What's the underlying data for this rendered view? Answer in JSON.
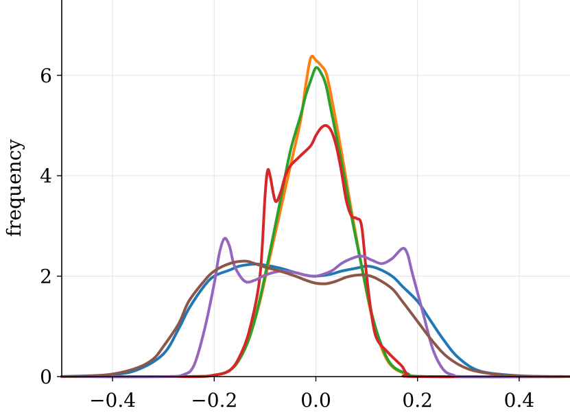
{
  "chart_data": {
    "type": "line",
    "title": "",
    "xlabel": "",
    "ylabel": "frequency",
    "xlim": [
      -0.5,
      0.5
    ],
    "ylim": [
      0,
      7.5
    ],
    "xticks": [
      -0.4,
      -0.2,
      0.0,
      0.2,
      0.4
    ],
    "xtick_labels": [
      "−0.4",
      "−0.2",
      "0.0",
      "0.2",
      "0.4"
    ],
    "yticks": [
      0,
      2,
      4,
      6
    ],
    "ytick_labels": [
      "0",
      "2",
      "4",
      "6"
    ],
    "grid": true,
    "legend": "none",
    "series": [
      {
        "color": "#1f77b4",
        "points": [
          [
            -0.5,
            0.0
          ],
          [
            -0.4,
            0.04
          ],
          [
            -0.35,
            0.14
          ],
          [
            -0.3,
            0.45
          ],
          [
            -0.27,
            0.95
          ],
          [
            -0.25,
            1.35
          ],
          [
            -0.22,
            1.8
          ],
          [
            -0.2,
            2.0
          ],
          [
            -0.17,
            2.12
          ],
          [
            -0.15,
            2.2
          ],
          [
            -0.12,
            2.24
          ],
          [
            -0.1,
            2.22
          ],
          [
            -0.07,
            2.16
          ],
          [
            -0.05,
            2.1
          ],
          [
            -0.02,
            2.02
          ],
          [
            0.0,
            2.0
          ],
          [
            0.03,
            2.04
          ],
          [
            0.05,
            2.1
          ],
          [
            0.08,
            2.16
          ],
          [
            0.1,
            2.2
          ],
          [
            0.12,
            2.16
          ],
          [
            0.15,
            2.0
          ],
          [
            0.17,
            1.8
          ],
          [
            0.2,
            1.5
          ],
          [
            0.22,
            1.2
          ],
          [
            0.25,
            0.75
          ],
          [
            0.28,
            0.38
          ],
          [
            0.32,
            0.12
          ],
          [
            0.38,
            0.03
          ],
          [
            0.45,
            0.0
          ],
          [
            0.5,
            0.0
          ]
        ]
      },
      {
        "color": "#ff7f0e",
        "points": [
          [
            -0.5,
            0.0
          ],
          [
            -0.25,
            0.0
          ],
          [
            -0.2,
            0.03
          ],
          [
            -0.17,
            0.12
          ],
          [
            -0.15,
            0.35
          ],
          [
            -0.13,
            0.8
          ],
          [
            -0.11,
            1.5
          ],
          [
            -0.09,
            2.4
          ],
          [
            -0.07,
            3.3
          ],
          [
            -0.05,
            4.2
          ],
          [
            -0.03,
            5.1
          ],
          [
            -0.02,
            5.8
          ],
          [
            -0.01,
            6.35
          ],
          [
            0.0,
            6.3
          ],
          [
            0.01,
            6.2
          ],
          [
            0.02,
            6.05
          ],
          [
            0.03,
            5.6
          ],
          [
            0.05,
            4.5
          ],
          [
            0.07,
            3.3
          ],
          [
            0.09,
            2.2
          ],
          [
            0.11,
            1.2
          ],
          [
            0.13,
            0.55
          ],
          [
            0.15,
            0.2
          ],
          [
            0.18,
            0.05
          ],
          [
            0.22,
            0.0
          ],
          [
            0.5,
            0.0
          ]
        ]
      },
      {
        "color": "#2ca02c",
        "points": [
          [
            -0.5,
            0.0
          ],
          [
            -0.25,
            0.0
          ],
          [
            -0.2,
            0.03
          ],
          [
            -0.17,
            0.12
          ],
          [
            -0.15,
            0.35
          ],
          [
            -0.13,
            0.8
          ],
          [
            -0.11,
            1.55
          ],
          [
            -0.09,
            2.5
          ],
          [
            -0.07,
            3.5
          ],
          [
            -0.05,
            4.5
          ],
          [
            -0.03,
            5.2
          ],
          [
            -0.02,
            5.6
          ],
          [
            -0.01,
            5.9
          ],
          [
            0.0,
            6.15
          ],
          [
            0.01,
            6.05
          ],
          [
            0.02,
            5.8
          ],
          [
            0.03,
            5.3
          ],
          [
            0.05,
            4.3
          ],
          [
            0.07,
            3.2
          ],
          [
            0.09,
            2.2
          ],
          [
            0.11,
            1.25
          ],
          [
            0.13,
            0.6
          ],
          [
            0.15,
            0.22
          ],
          [
            0.18,
            0.06
          ],
          [
            0.22,
            0.0
          ],
          [
            0.5,
            0.0
          ]
        ]
      },
      {
        "color": "#d62728",
        "points": [
          [
            -0.5,
            0.0
          ],
          [
            -0.25,
            0.0
          ],
          [
            -0.2,
            0.03
          ],
          [
            -0.17,
            0.12
          ],
          [
            -0.15,
            0.4
          ],
          [
            -0.13,
            0.95
          ],
          [
            -0.11,
            2.0
          ],
          [
            -0.1,
            3.6
          ],
          [
            -0.095,
            4.1
          ],
          [
            -0.09,
            4.0
          ],
          [
            -0.08,
            3.5
          ],
          [
            -0.07,
            3.65
          ],
          [
            -0.06,
            4.0
          ],
          [
            -0.05,
            4.2
          ],
          [
            -0.03,
            4.4
          ],
          [
            -0.01,
            4.6
          ],
          [
            0.0,
            4.8
          ],
          [
            0.01,
            4.95
          ],
          [
            0.02,
            5.0
          ],
          [
            0.03,
            4.9
          ],
          [
            0.04,
            4.6
          ],
          [
            0.05,
            4.1
          ],
          [
            0.06,
            3.5
          ],
          [
            0.07,
            3.2
          ],
          [
            0.08,
            3.15
          ],
          [
            0.09,
            3.0
          ],
          [
            0.1,
            2.0
          ],
          [
            0.11,
            1.2
          ],
          [
            0.12,
            0.75
          ],
          [
            0.14,
            0.5
          ],
          [
            0.16,
            0.3
          ],
          [
            0.17,
            0.2
          ],
          [
            0.18,
            0.05
          ],
          [
            0.2,
            0.0
          ],
          [
            0.5,
            0.0
          ]
        ]
      },
      {
        "color": "#9467bd",
        "points": [
          [
            -0.5,
            0.0
          ],
          [
            -0.3,
            0.0
          ],
          [
            -0.26,
            0.04
          ],
          [
            -0.24,
            0.22
          ],
          [
            -0.22,
            0.9
          ],
          [
            -0.2,
            1.85
          ],
          [
            -0.19,
            2.45
          ],
          [
            -0.18,
            2.75
          ],
          [
            -0.17,
            2.6
          ],
          [
            -0.16,
            2.2
          ],
          [
            -0.14,
            1.9
          ],
          [
            -0.12,
            1.92
          ],
          [
            -0.1,
            2.02
          ],
          [
            -0.07,
            2.1
          ],
          [
            -0.04,
            2.07
          ],
          [
            -0.02,
            2.02
          ],
          [
            0.0,
            2.0
          ],
          [
            0.03,
            2.1
          ],
          [
            0.05,
            2.25
          ],
          [
            0.07,
            2.35
          ],
          [
            0.09,
            2.4
          ],
          [
            0.11,
            2.32
          ],
          [
            0.13,
            2.25
          ],
          [
            0.15,
            2.35
          ],
          [
            0.17,
            2.55
          ],
          [
            0.18,
            2.45
          ],
          [
            0.19,
            2.05
          ],
          [
            0.21,
            1.3
          ],
          [
            0.23,
            0.55
          ],
          [
            0.25,
            0.15
          ],
          [
            0.27,
            0.03
          ],
          [
            0.3,
            0.0
          ],
          [
            0.5,
            0.0
          ]
        ]
      },
      {
        "color": "#8c564b",
        "points": [
          [
            -0.5,
            0.0
          ],
          [
            -0.45,
            0.01
          ],
          [
            -0.4,
            0.05
          ],
          [
            -0.35,
            0.18
          ],
          [
            -0.32,
            0.35
          ],
          [
            -0.3,
            0.6
          ],
          [
            -0.27,
            1.05
          ],
          [
            -0.25,
            1.5
          ],
          [
            -0.22,
            1.9
          ],
          [
            -0.2,
            2.1
          ],
          [
            -0.17,
            2.25
          ],
          [
            -0.14,
            2.3
          ],
          [
            -0.12,
            2.25
          ],
          [
            -0.1,
            2.18
          ],
          [
            -0.07,
            2.1
          ],
          [
            -0.04,
            2.0
          ],
          [
            -0.02,
            1.92
          ],
          [
            0.0,
            1.86
          ],
          [
            0.02,
            1.85
          ],
          [
            0.04,
            1.9
          ],
          [
            0.06,
            1.98
          ],
          [
            0.08,
            2.02
          ],
          [
            0.1,
            2.02
          ],
          [
            0.12,
            1.95
          ],
          [
            0.15,
            1.75
          ],
          [
            0.17,
            1.5
          ],
          [
            0.2,
            1.1
          ],
          [
            0.23,
            0.7
          ],
          [
            0.26,
            0.38
          ],
          [
            0.3,
            0.15
          ],
          [
            0.35,
            0.05
          ],
          [
            0.4,
            0.01
          ],
          [
            0.5,
            0.0
          ]
        ]
      }
    ]
  }
}
